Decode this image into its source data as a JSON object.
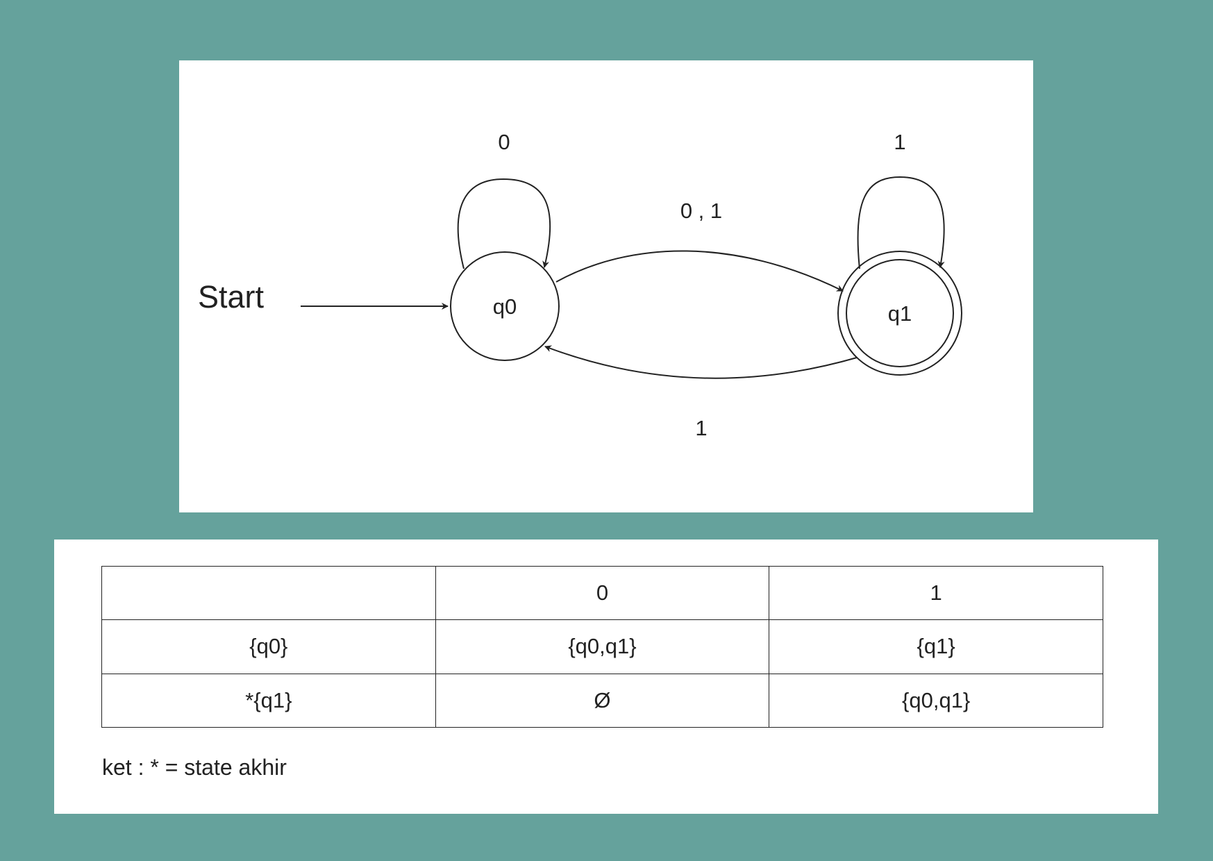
{
  "diagram": {
    "start_label": "Start",
    "states": [
      {
        "id": "q0",
        "label": "q0",
        "accepting": false
      },
      {
        "id": "q1",
        "label": "q1",
        "accepting": true
      }
    ],
    "transitions": {
      "q0_loop": "0",
      "q1_loop": "1",
      "q0_to_q1": "0 , 1",
      "q1_to_q0": "1"
    }
  },
  "table": {
    "header": [
      "",
      "0",
      "1"
    ],
    "rows": [
      [
        "{q0}",
        "{q0,q1}",
        "{q1}"
      ],
      [
        "*{q1}",
        "Ø",
        "{q0,q1}"
      ]
    ]
  },
  "note": "ket : * = state akhir",
  "colors": {
    "background": "#65a29c",
    "panel": "#ffffff",
    "stroke": "#222222"
  }
}
